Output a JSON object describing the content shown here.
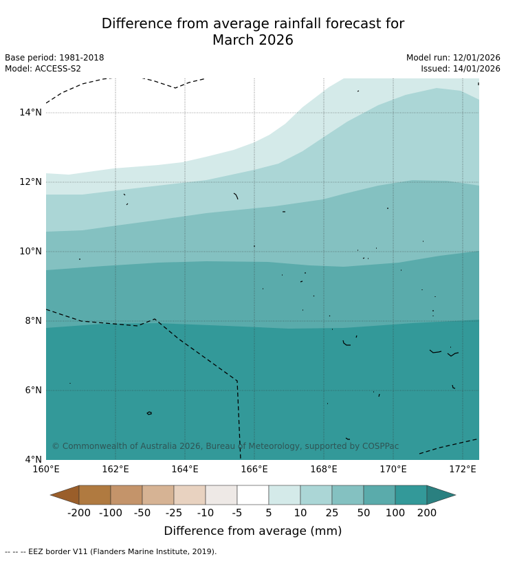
{
  "title": {
    "line1": "Difference from average rainfall forecast for",
    "line2": "March 2026"
  },
  "meta": {
    "base_period": "Base period: 1981-2018",
    "model": "Model: ACCESS-S2",
    "model_run": "Model run: 12/01/2026",
    "issued": "Issued: 14/01/2026"
  },
  "map": {
    "lat_labels": [
      "4°N",
      "6°N",
      "8°N",
      "10°N",
      "12°N",
      "14°N"
    ],
    "lon_labels": [
      "160°E",
      "162°E",
      "164°E",
      "166°E",
      "168°E",
      "170°E",
      "172°E"
    ],
    "copyright": "© Commonwealth of Australia 2026, Bureau of Meteorology, supported by COSPPac"
  },
  "legend": {
    "colors": [
      "#9a5e2a",
      "#b07a40",
      "#c4946a",
      "#d6b394",
      "#e8d2c0",
      "#eee9e6",
      "#ffffff",
      "#d4eae9",
      "#abd6d6",
      "#84c1c1",
      "#5aabab",
      "#339999",
      "#2a8080"
    ],
    "tick_labels": [
      "-200",
      "-100",
      "-50",
      "-25",
      "-10",
      "-5",
      "5",
      "10",
      "25",
      "50",
      "100",
      "200"
    ],
    "label": "Difference from average (mm)"
  },
  "footer": {
    "note": "--  --  -- EEZ border V11 (Flanders Marine Institute, 2019)."
  }
}
